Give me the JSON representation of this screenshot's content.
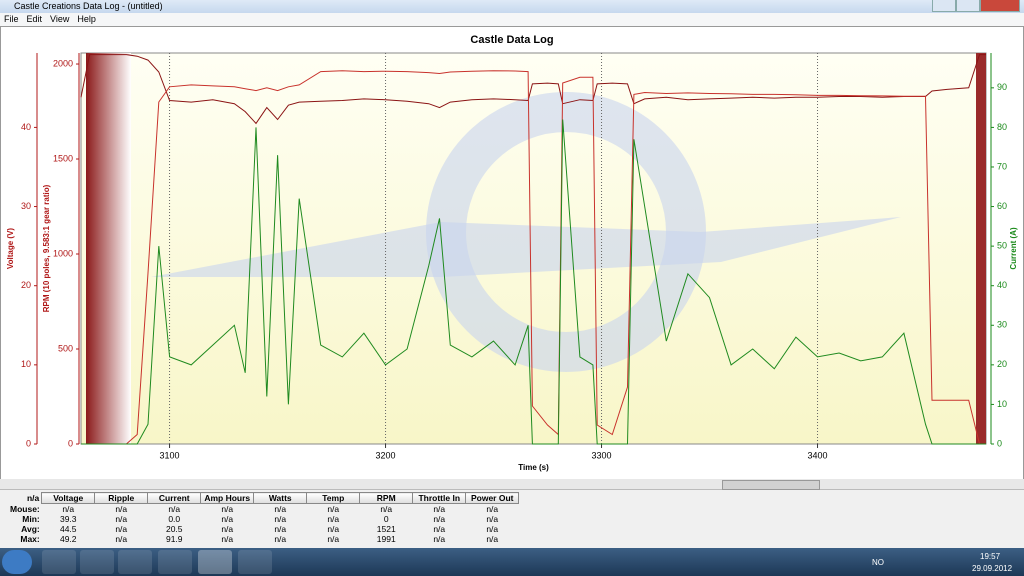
{
  "window": {
    "title": "Castle Creations Data Log - (untitled)",
    "menu": [
      "File",
      "Edit",
      "View",
      "Help"
    ]
  },
  "chart_data": {
    "type": "line",
    "title": "Castle Data Log",
    "x_label": "Time (s)",
    "xlim": [
      3059,
      3478
    ],
    "xticks": [
      3100,
      3200,
      3300,
      3400
    ],
    "grid": true,
    "y_axes": [
      {
        "label": "Voltage (V)",
        "lim": [
          0,
          49.4
        ],
        "ticks": [
          0,
          10,
          20,
          30,
          40
        ],
        "color": "#b01818"
      },
      {
        "label": "RPM (10 poles, 9.583:1 gear ratio)",
        "lim": [
          0,
          2058
        ],
        "ticks": [
          0,
          500,
          1000,
          1500,
          2000
        ],
        "color": "#b01818"
      },
      {
        "label": "Current (A)",
        "lim": [
          0,
          98.8
        ],
        "ticks": [
          0,
          10,
          20,
          30,
          40,
          50,
          60,
          70,
          80,
          90
        ],
        "color": "#1a8a1a"
      }
    ],
    "x": [
      3059,
      3063,
      3070,
      3080,
      3085,
      3090,
      3095,
      3100,
      3110,
      3120,
      3130,
      3135,
      3140,
      3145,
      3150,
      3155,
      3160,
      3170,
      3180,
      3190,
      3200,
      3210,
      3220,
      3225,
      3230,
      3240,
      3250,
      3260,
      3266,
      3268,
      3275,
      3280,
      3282,
      3290,
      3296,
      3298,
      3305,
      3312,
      3315,
      3320,
      3330,
      3340,
      3350,
      3360,
      3370,
      3380,
      3390,
      3400,
      3410,
      3420,
      3430,
      3440,
      3450,
      3453,
      3460,
      3470,
      3475,
      3478
    ],
    "series": [
      {
        "axis": 0,
        "color": "#8b1414",
        "values": [
          43.8,
          49.2,
          49.2,
          49.2,
          49.0,
          48.5,
          47.0,
          43.4,
          43.2,
          43.5,
          43.0,
          42.0,
          40.5,
          42.5,
          41.0,
          42.8,
          43.2,
          43.3,
          43.4,
          43.6,
          43.5,
          43.3,
          43.0,
          42.5,
          43.2,
          43.5,
          43.6,
          43.5,
          43.4,
          45.5,
          45.6,
          45.5,
          43.0,
          43.5,
          43.4,
          45.5,
          45.6,
          45.5,
          43.0,
          43.6,
          43.8,
          43.5,
          43.6,
          43.7,
          43.8,
          43.7,
          43.8,
          43.8,
          43.9,
          43.9,
          43.8,
          43.9,
          43.9,
          44.6,
          44.8,
          45.0,
          49.2,
          49.2
        ]
      },
      {
        "axis": 1,
        "color": "#c8322c",
        "values": [
          0,
          0,
          0,
          0,
          50,
          900,
          1800,
          1880,
          1890,
          1885,
          1880,
          1870,
          1860,
          1875,
          1860,
          1880,
          1890,
          1960,
          1965,
          1960,
          1962,
          1960,
          1955,
          1950,
          1958,
          1962,
          1965,
          1963,
          1960,
          200,
          100,
          50,
          1900,
          1930,
          1930,
          100,
          50,
          300,
          1840,
          1850,
          1845,
          1848,
          1845,
          1843,
          1840,
          1840,
          1838,
          1835,
          1835,
          1833,
          1832,
          1830,
          1830,
          230,
          230,
          230,
          0,
          0
        ]
      },
      {
        "axis": 2,
        "color": "#1f8a1f",
        "values": [
          0,
          0,
          0,
          0,
          0,
          5,
          50,
          22,
          20,
          25,
          30,
          18,
          80,
          12,
          73,
          10,
          62,
          25,
          22,
          28,
          20,
          24,
          45,
          57,
          25,
          22,
          26,
          20,
          30,
          0,
          0,
          0,
          82,
          22,
          20,
          0,
          0,
          0,
          77,
          60,
          26,
          43,
          37,
          20,
          24,
          19,
          27,
          22,
          23,
          21,
          22,
          28,
          5,
          0,
          0,
          0,
          0,
          0
        ]
      }
    ]
  },
  "table": {
    "headers": [
      "n/a",
      "Voltage",
      "Ripple",
      "Current",
      "Amp Hours",
      "Watts",
      "Temp",
      "RPM",
      "Throttle In",
      "Power Out"
    ],
    "rows": [
      [
        "Mouse:",
        "n/a",
        "n/a",
        "n/a",
        "n/a",
        "n/a",
        "n/a",
        "n/a",
        "n/a",
        "n/a"
      ],
      [
        "Min:",
        "39.3",
        "n/a",
        "0.0",
        "n/a",
        "n/a",
        "n/a",
        "0",
        "n/a",
        "n/a"
      ],
      [
        "Avg:",
        "44.5",
        "n/a",
        "20.5",
        "n/a",
        "n/a",
        "n/a",
        "1521",
        "n/a",
        "n/a"
      ],
      [
        "Max:",
        "49.2",
        "n/a",
        "91.9",
        "n/a",
        "n/a",
        "n/a",
        "1991",
        "n/a",
        "n/a"
      ]
    ]
  },
  "taskbar": {
    "language": "NO",
    "time": "19:57",
    "date": "29.09.2012"
  }
}
